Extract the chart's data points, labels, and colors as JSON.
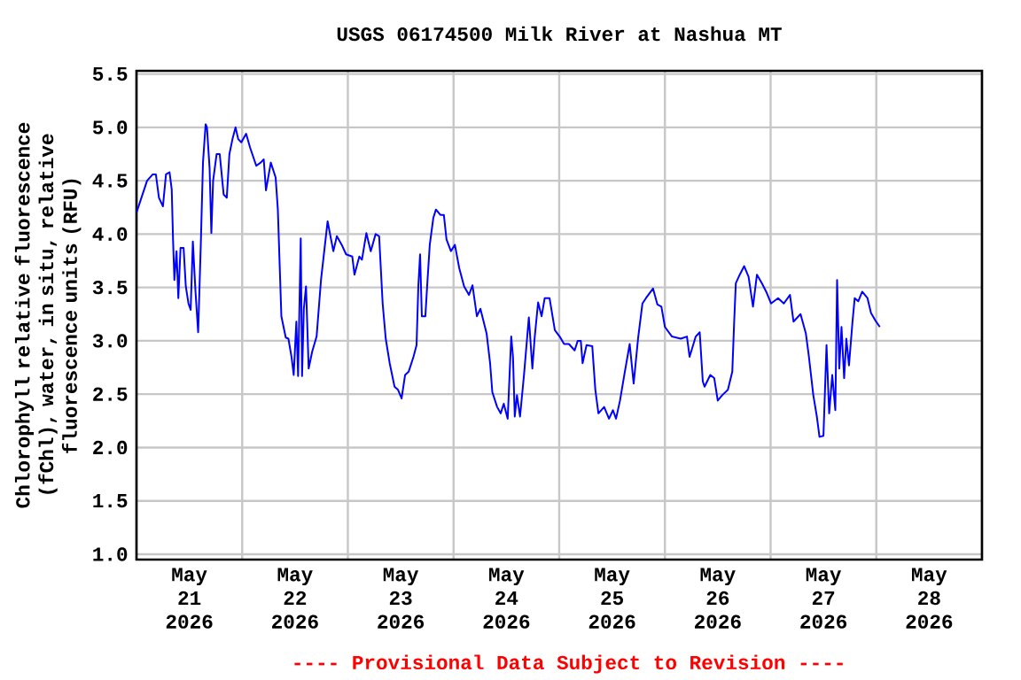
{
  "chart_data": {
    "type": "line",
    "title": "USGS 06174500 Milk River at Nashua MT",
    "ylabel": "Chlorophyll relative fluorescence (fChl), water, in situ, relative fluorescence units (RFU)",
    "annotations": [
      "---- Provisional Data Subject to Revision ----"
    ],
    "xlim": [
      "2026-05-21T00:00",
      "2026-05-29T00:00"
    ],
    "xticks": [
      {
        "value": "2026-05-21T12:00",
        "label": "May 21 2026"
      },
      {
        "value": "2026-05-22T00:00",
        "label": null
      },
      {
        "value": "2026-05-22T12:00",
        "label": "May 22 2026"
      },
      {
        "value": "2026-05-23T00:00",
        "label": null
      },
      {
        "value": "2026-05-23T12:00",
        "label": "May 23 2026"
      },
      {
        "value": "2026-05-24T00:00",
        "label": null
      },
      {
        "value": "2026-05-24T12:00",
        "label": "May 24 2026"
      },
      {
        "value": "2026-05-25T00:00",
        "label": null
      },
      {
        "value": "2026-05-25T12:00",
        "label": "May 25 2026"
      },
      {
        "value": "2026-05-26T00:00",
        "label": null
      },
      {
        "value": "2026-05-26T12:00",
        "label": "May 26 2026"
      },
      {
        "value": "2026-05-27T00:00",
        "label": null
      },
      {
        "value": "2026-05-27T12:00",
        "label": "May 27 2026"
      },
      {
        "value": "2026-05-28T00:00",
        "label": null
      },
      {
        "value": "2026-05-28T12:00",
        "label": "May 28 2026"
      }
    ],
    "ylim": [
      0.95,
      5.53
    ],
    "yticks": [
      {
        "value": 1,
        "label": "1.0"
      },
      1.5,
      {
        "value": 2,
        "label": "2.0"
      },
      2.5,
      {
        "value": 3,
        "label": "3.0"
      },
      3.5,
      {
        "value": 4,
        "label": "4.0"
      },
      4.5,
      {
        "value": 5,
        "label": "5.0"
      },
      5.5
    ],
    "grid": true,
    "series": [
      {
        "color": "#0000ff",
        "x": [
          "2026-05-21T00:00",
          "2026-05-21T02:24",
          "2026-05-21T03:42",
          "2026-05-21T04:24",
          "2026-05-21T05:06",
          "2026-05-21T06:00",
          "2026-05-21T06:42",
          "2026-05-21T07:30",
          "2026-05-21T08:00",
          "2026-05-21T08:18",
          "2026-05-21T08:36",
          "2026-05-21T09:06",
          "2026-05-21T09:30",
          "2026-05-21T10:00",
          "2026-05-21T10:42",
          "2026-05-21T11:12",
          "2026-05-21T11:48",
          "2026-05-21T12:18",
          "2026-05-21T12:48",
          "2026-05-21T13:24",
          "2026-05-21T14:00",
          "2026-05-21T14:36",
          "2026-05-21T15:06",
          "2026-05-21T15:42",
          "2026-05-21T16:00",
          "2026-05-21T16:36",
          "2026-05-21T17:00",
          "2026-05-21T17:24",
          "2026-05-21T18:12",
          "2026-05-21T18:54",
          "2026-05-21T19:48",
          "2026-05-21T20:30",
          "2026-05-21T21:06",
          "2026-05-21T21:48",
          "2026-05-21T22:30",
          "2026-05-21T23:06",
          "2026-05-21T23:48",
          "2026-05-22T00:54",
          "2026-05-22T01:48",
          "2026-05-22T03:12",
          "2026-05-22T04:12",
          "2026-05-22T04:54",
          "2026-05-22T05:24",
          "2026-05-22T06:30",
          "2026-05-22T07:36",
          "2026-05-22T08:06",
          "2026-05-22T08:30",
          "2026-05-22T08:54",
          "2026-05-22T09:54",
          "2026-05-22T10:30",
          "2026-05-22T11:12",
          "2026-05-22T11:42",
          "2026-05-22T12:18",
          "2026-05-22T12:42",
          "2026-05-22T13:18",
          "2026-05-22T13:36",
          "2026-05-22T14:00",
          "2026-05-22T14:30",
          "2026-05-22T15:06",
          "2026-05-22T15:54",
          "2026-05-22T16:54",
          "2026-05-22T17:54",
          "2026-05-22T18:30",
          "2026-05-22T19:24",
          "2026-05-22T20:42",
          "2026-05-22T21:30",
          "2026-05-22T22:36",
          "2026-05-22T23:36",
          "2026-05-23T01:00",
          "2026-05-23T01:30",
          "2026-05-23T02:36",
          "2026-05-23T03:12",
          "2026-05-23T04:12",
          "2026-05-23T05:12",
          "2026-05-23T06:18",
          "2026-05-23T07:06",
          "2026-05-23T07:54",
          "2026-05-23T08:36",
          "2026-05-23T09:30",
          "2026-05-23T10:36",
          "2026-05-23T11:24",
          "2026-05-23T12:12",
          "2026-05-23T13:00",
          "2026-05-23T13:48",
          "2026-05-23T14:54",
          "2026-05-23T15:36",
          "2026-05-23T16:00",
          "2026-05-23T16:24",
          "2026-05-23T16:48",
          "2026-05-23T17:36",
          "2026-05-23T18:00",
          "2026-05-23T18:36",
          "2026-05-23T19:24",
          "2026-05-23T20:00",
          "2026-05-23T21:00",
          "2026-05-23T21:48",
          "2026-05-23T22:24",
          "2026-05-23T23:24",
          "2026-05-24T00:18",
          "2026-05-24T01:18",
          "2026-05-24T02:24",
          "2026-05-24T03:30",
          "2026-05-24T04:18",
          "2026-05-24T05:18",
          "2026-05-24T06:06",
          "2026-05-24T07:30",
          "2026-05-24T08:18",
          "2026-05-24T08:48",
          "2026-05-24T09:54",
          "2026-05-24T10:42",
          "2026-05-24T11:24",
          "2026-05-24T12:18",
          "2026-05-24T13:06",
          "2026-05-24T13:30",
          "2026-05-24T13:54",
          "2026-05-24T14:24",
          "2026-05-24T15:06",
          "2026-05-24T16:00",
          "2026-05-24T17:06",
          "2026-05-24T17:54",
          "2026-05-24T18:24",
          "2026-05-24T19:12",
          "2026-05-24T20:00",
          "2026-05-24T20:42",
          "2026-05-24T21:48",
          "2026-05-24T23:00",
          "2026-05-25T00:06",
          "2026-05-25T01:06",
          "2026-05-25T02:12",
          "2026-05-25T03:30",
          "2026-05-25T04:12",
          "2026-05-25T04:54",
          "2026-05-25T05:18",
          "2026-05-25T06:12",
          "2026-05-25T07:30",
          "2026-05-25T08:12",
          "2026-05-25T08:54",
          "2026-05-25T10:12",
          "2026-05-25T11:18",
          "2026-05-25T12:12",
          "2026-05-25T12:54",
          "2026-05-25T13:48",
          "2026-05-25T14:54",
          "2026-05-25T16:00",
          "2026-05-25T16:54",
          "2026-05-25T17:54",
          "2026-05-25T18:54",
          "2026-05-25T19:42",
          "2026-05-25T21:18",
          "2026-05-25T22:18",
          "2026-05-25T23:12",
          "2026-05-26T00:00",
          "2026-05-26T01:36",
          "2026-05-26T03:36",
          "2026-05-26T05:00",
          "2026-05-26T05:36",
          "2026-05-26T07:00",
          "2026-05-26T07:54",
          "2026-05-26T08:36",
          "2026-05-26T09:00",
          "2026-05-26T10:18",
          "2026-05-26T11:12",
          "2026-05-26T12:00",
          "2026-05-26T13:00",
          "2026-05-26T14:18",
          "2026-05-26T15:18",
          "2026-05-26T15:42",
          "2026-05-26T16:06",
          "2026-05-26T17:00",
          "2026-05-26T18:00",
          "2026-05-26T19:00",
          "2026-05-26T20:00",
          "2026-05-26T20:54",
          "2026-05-26T22:00",
          "2026-05-26T23:00",
          "2026-05-27T00:06",
          "2026-05-27T01:42",
          "2026-05-27T03:00",
          "2026-05-27T04:24",
          "2026-05-27T05:12",
          "2026-05-27T06:48",
          "2026-05-27T08:00",
          "2026-05-27T08:42",
          "2026-05-27T09:42",
          "2026-05-27T10:30",
          "2026-05-27T11:06",
          "2026-05-27T12:00",
          "2026-05-27T12:42",
          "2026-05-27T13:18",
          "2026-05-27T14:00",
          "2026-05-27T14:42",
          "2026-05-27T15:06",
          "2026-05-27T15:36",
          "2026-05-27T16:06",
          "2026-05-27T16:42",
          "2026-05-27T17:12",
          "2026-05-27T17:48",
          "2026-05-27T18:36",
          "2026-05-27T19:06",
          "2026-05-27T19:54",
          "2026-05-27T20:48",
          "2026-05-27T22:00",
          "2026-05-27T22:48",
          "2026-05-27T23:48",
          "2026-05-28T00:48"
        ],
        "values": [
          4.2,
          4.5,
          4.56,
          4.56,
          4.34,
          4.26,
          4.56,
          4.58,
          4.42,
          3.95,
          3.57,
          3.84,
          3.4,
          3.87,
          3.87,
          3.51,
          3.35,
          3.29,
          3.93,
          3.46,
          3.08,
          3.9,
          4.67,
          5.03,
          5.0,
          4.62,
          4.01,
          4.5,
          4.75,
          4.75,
          4.37,
          4.34,
          4.75,
          4.89,
          5.0,
          4.89,
          4.86,
          4.94,
          4.81,
          4.64,
          4.67,
          4.7,
          4.41,
          4.67,
          4.53,
          4.23,
          3.73,
          3.23,
          3.03,
          3.02,
          2.85,
          2.68,
          3.18,
          2.67,
          3.96,
          2.67,
          3.3,
          3.51,
          2.74,
          2.9,
          3.04,
          3.57,
          3.79,
          4.12,
          3.84,
          3.98,
          3.9,
          3.81,
          3.79,
          3.62,
          3.79,
          3.76,
          4.01,
          3.84,
          4.0,
          3.98,
          3.35,
          3.02,
          2.79,
          2.57,
          2.54,
          2.46,
          2.68,
          2.71,
          2.85,
          2.96,
          3.51,
          3.81,
          3.23,
          3.23,
          3.51,
          3.9,
          4.15,
          4.23,
          4.18,
          4.18,
          3.95,
          3.84,
          3.9,
          3.68,
          3.51,
          3.43,
          3.52,
          3.23,
          3.3,
          3.07,
          2.79,
          2.52,
          2.38,
          2.32,
          2.41,
          2.27,
          3.04,
          2.85,
          2.29,
          2.49,
          2.29,
          2.68,
          3.22,
          2.74,
          3.02,
          3.36,
          3.23,
          3.4,
          3.4,
          3.1,
          3.04,
          2.97,
          2.97,
          2.91,
          3.0,
          3.0,
          2.79,
          2.96,
          2.95,
          2.54,
          2.32,
          2.38,
          2.27,
          2.35,
          2.27,
          2.44,
          2.71,
          2.97,
          2.6,
          3.02,
          3.35,
          3.4,
          3.49,
          3.34,
          3.32,
          3.13,
          3.04,
          3.02,
          3.04,
          2.85,
          3.04,
          3.08,
          2.62,
          2.57,
          2.68,
          2.65,
          2.44,
          2.49,
          2.54,
          2.71,
          3.15,
          3.54,
          3.62,
          3.7,
          3.6,
          3.32,
          3.62,
          3.54,
          3.46,
          3.35,
          3.4,
          3.35,
          3.43,
          3.18,
          3.25,
          3.07,
          2.85,
          2.49,
          2.29,
          2.1,
          2.11,
          2.96,
          2.32,
          2.68,
          2.35,
          3.57,
          2.74,
          3.13,
          2.65,
          3.02,
          2.77,
          3.18,
          3.4,
          3.37,
          3.46,
          3.4,
          3.26,
          3.19,
          3.13
        ]
      }
    ]
  }
}
